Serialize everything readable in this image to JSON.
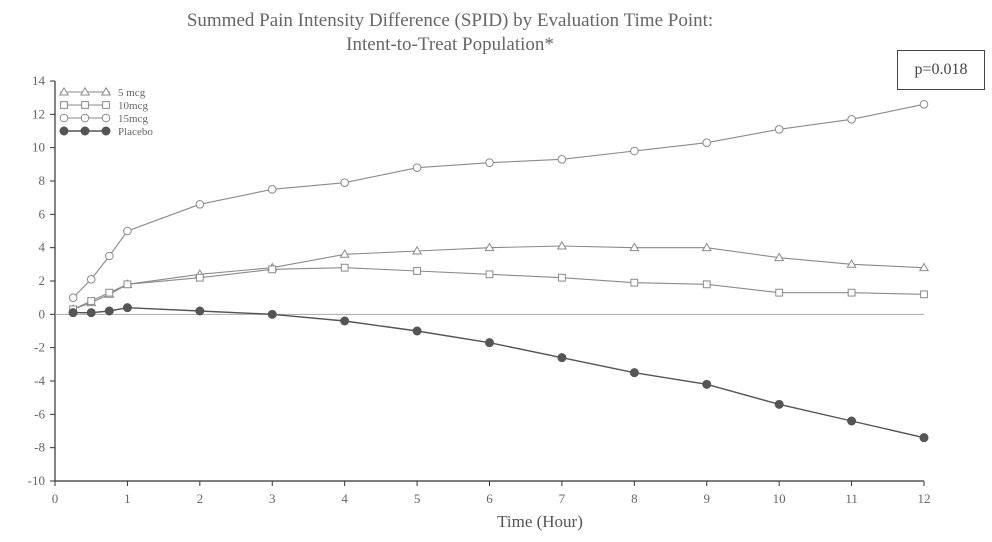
{
  "title_line1": "Summed Pain Intensity Difference (SPID) by Evaluation Time Point:",
  "title_line2": "Intent-to-Treat Population*",
  "p_value": "p=0.018",
  "chart_data": {
    "type": "line",
    "title": "Summed Pain Intensity Difference (SPID) by Evaluation Time Point: Intent-to-Treat Population*",
    "xlabel": "Time (Hour)",
    "ylabel": "",
    "xlim": [
      0,
      12
    ],
    "ylim": [
      -10,
      14
    ],
    "xticks": [
      0,
      1,
      2,
      3,
      4,
      5,
      6,
      7,
      8,
      9,
      10,
      11,
      12
    ],
    "yticks": [
      -10,
      -8,
      -6,
      -4,
      -2,
      0,
      2,
      4,
      6,
      8,
      10,
      12,
      14
    ],
    "grid": false,
    "legend_position": "top-left",
    "zero_line": true,
    "series": [
      {
        "name": "5 mcg",
        "marker": "triangle",
        "color": "#8a8a8a",
        "points": [
          [
            0.25,
            0.3
          ],
          [
            0.5,
            0.7
          ],
          [
            0.75,
            1.2
          ],
          [
            1,
            1.8
          ],
          [
            2,
            2.4
          ],
          [
            3,
            2.8
          ],
          [
            4,
            3.6
          ],
          [
            5,
            3.8
          ],
          [
            6,
            4.0
          ],
          [
            7,
            4.1
          ],
          [
            8,
            4.0
          ],
          [
            9,
            4.0
          ],
          [
            10,
            3.4
          ],
          [
            11,
            3.0
          ],
          [
            12,
            2.8
          ]
        ]
      },
      {
        "name": "10mcg",
        "marker": "square",
        "color": "#8a8a8a",
        "points": [
          [
            0.25,
            0.3
          ],
          [
            0.5,
            0.8
          ],
          [
            0.75,
            1.3
          ],
          [
            1,
            1.8
          ],
          [
            2,
            2.2
          ],
          [
            3,
            2.7
          ],
          [
            4,
            2.8
          ],
          [
            5,
            2.6
          ],
          [
            6,
            2.4
          ],
          [
            7,
            2.2
          ],
          [
            8,
            1.9
          ],
          [
            9,
            1.8
          ],
          [
            10,
            1.3
          ],
          [
            11,
            1.3
          ],
          [
            12,
            1.2
          ]
        ]
      },
      {
        "name": "15mcg",
        "marker": "circle",
        "color": "#8a8a8a",
        "points": [
          [
            0.25,
            1.0
          ],
          [
            0.5,
            2.1
          ],
          [
            0.75,
            3.5
          ],
          [
            1,
            5.0
          ],
          [
            2,
            6.6
          ],
          [
            3,
            7.5
          ],
          [
            4,
            7.9
          ],
          [
            5,
            8.8
          ],
          [
            6,
            9.1
          ],
          [
            7,
            9.3
          ],
          [
            8,
            9.8
          ],
          [
            9,
            10.3
          ],
          [
            10,
            11.1
          ],
          [
            11,
            11.7
          ],
          [
            12,
            12.6
          ]
        ]
      },
      {
        "name": "Placebo",
        "marker": "filled-circle",
        "color": "#555555",
        "points": [
          [
            0.25,
            0.1
          ],
          [
            0.5,
            0.1
          ],
          [
            0.75,
            0.2
          ],
          [
            1,
            0.4
          ],
          [
            2,
            0.2
          ],
          [
            3,
            0.0
          ],
          [
            4,
            -0.4
          ],
          [
            5,
            -1.0
          ],
          [
            6,
            -1.7
          ],
          [
            7,
            -2.6
          ],
          [
            8,
            -3.5
          ],
          [
            9,
            -4.2
          ],
          [
            10,
            -5.4
          ],
          [
            11,
            -6.4
          ],
          [
            12,
            -7.4
          ]
        ]
      }
    ]
  }
}
